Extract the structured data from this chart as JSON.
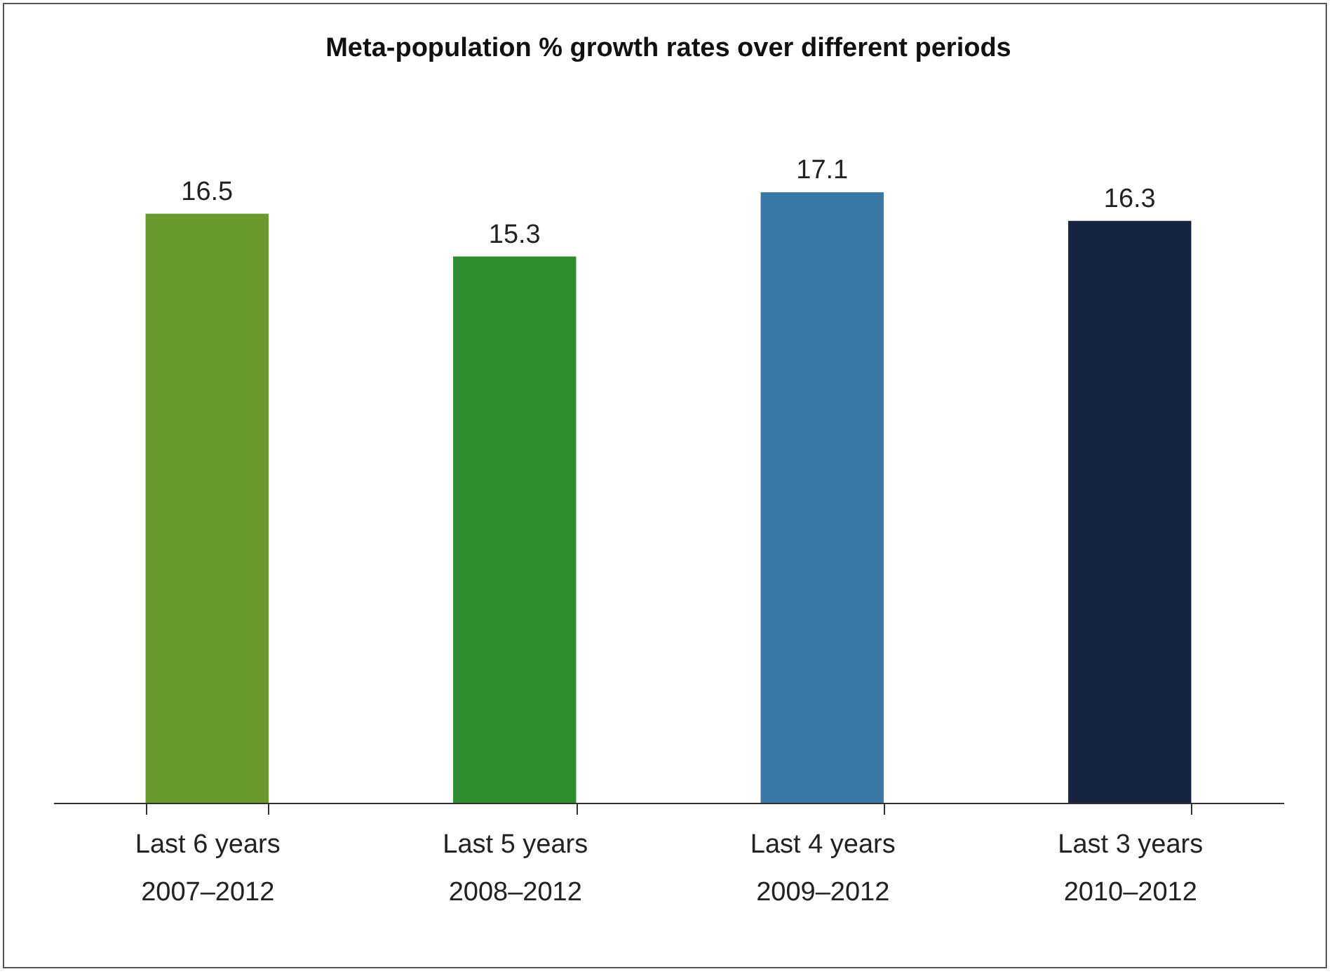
{
  "chart_data": {
    "type": "bar",
    "title": "Meta-population % growth rates over different periods",
    "categories": [
      "Last 6 years\n2007–2012",
      "Last 5 years\n2008–2012",
      "Last 4 years\n2009–2012",
      "Last 3 years\n2010–2012"
    ],
    "values": [
      16.5,
      15.3,
      17.1,
      16.3
    ],
    "colors": [
      "#6a9a2e",
      "#2e8b2e",
      "#3a78a8",
      "#162440"
    ],
    "data_labels": true,
    "grid": false,
    "legend": false
  }
}
